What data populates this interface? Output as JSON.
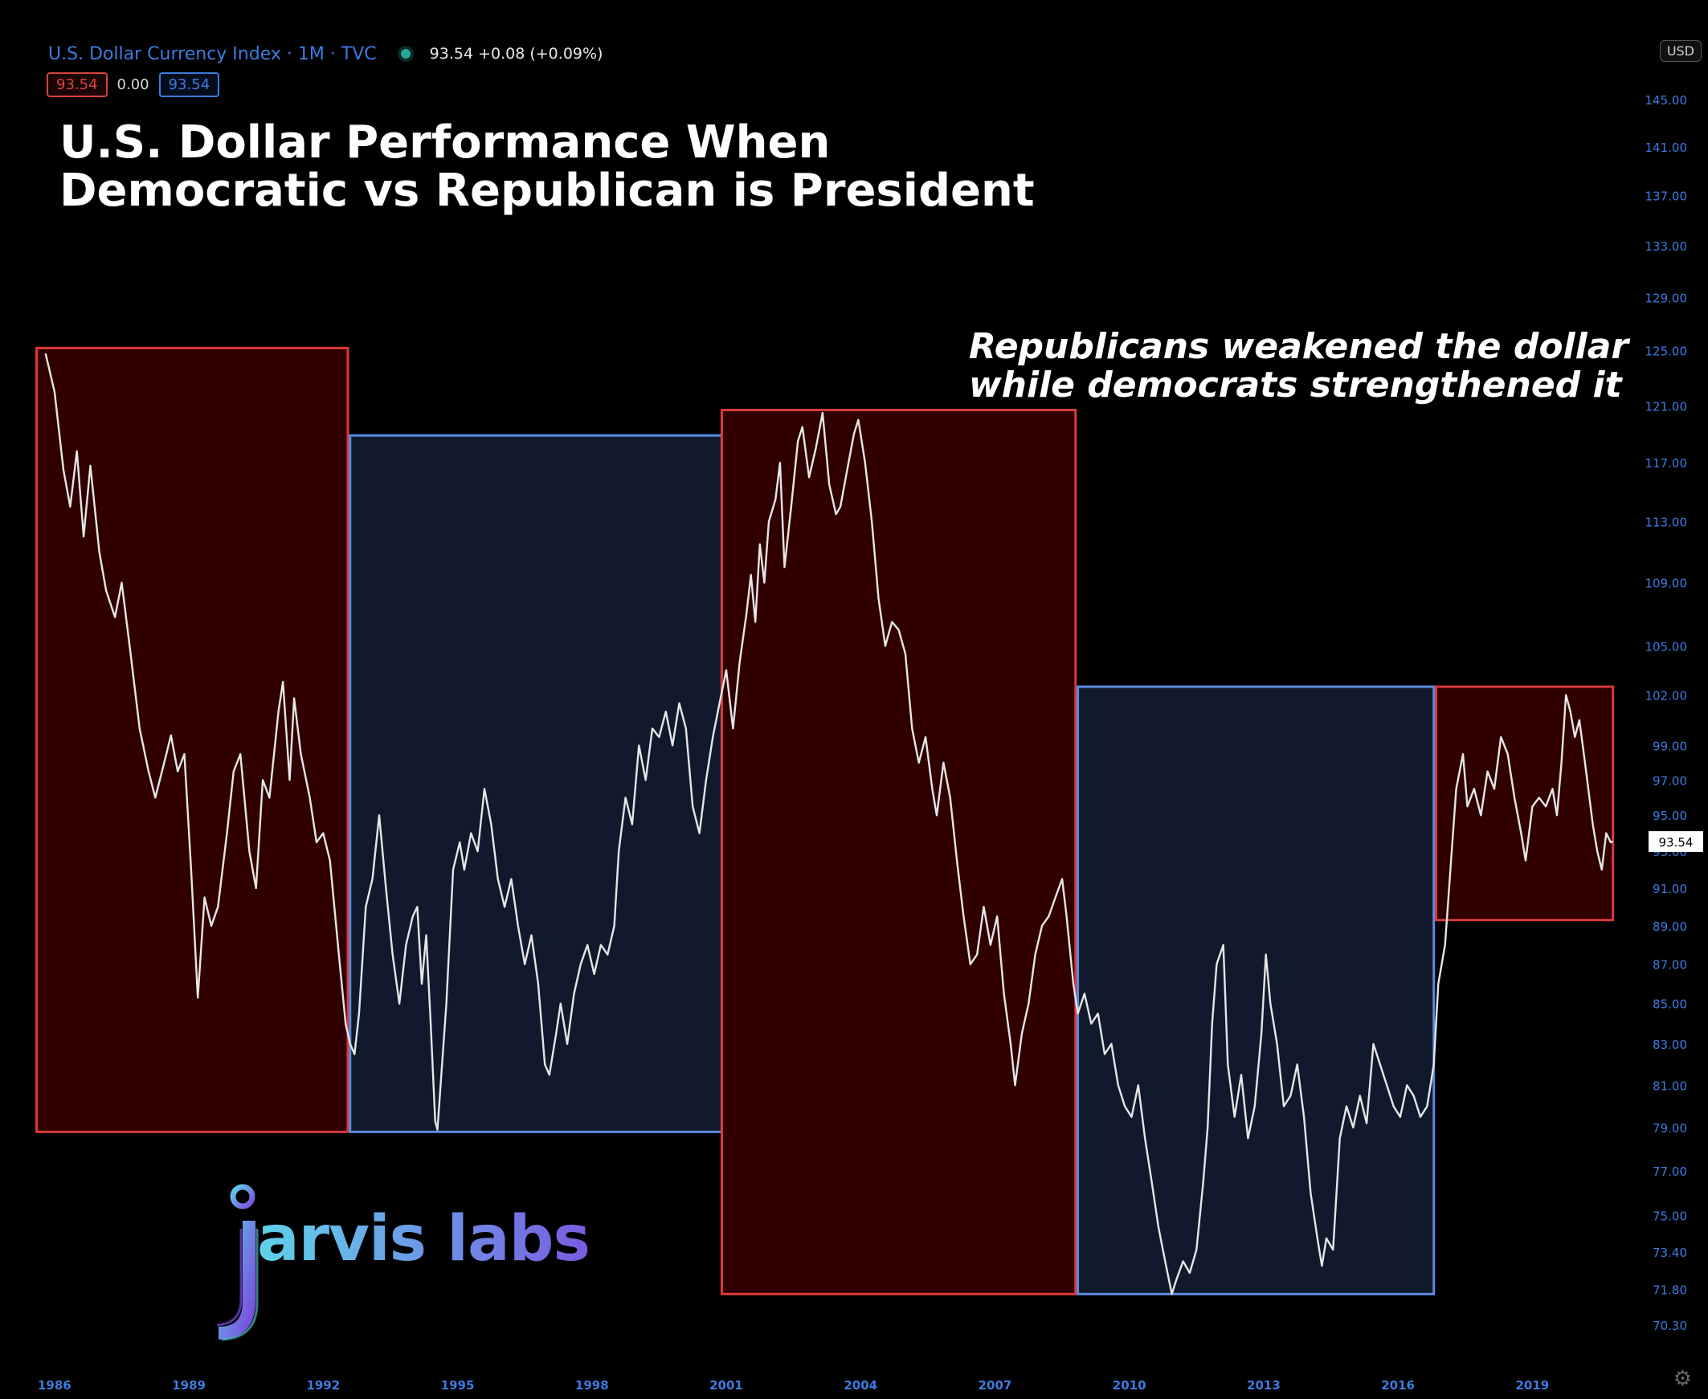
{
  "header": {
    "symbol": "U.S. Dollar Currency Index · 1M · TVC",
    "quote": "93.54  +0.08 (+0.09%)",
    "bid": "93.54",
    "spread": "0.00",
    "ask": "93.54",
    "currency": "USD"
  },
  "title_line1": "U.S. Dollar Performance When",
  "title_line2": "Democratic vs Republican is President",
  "annotation_line1": "Republicans weakened the dollar",
  "annotation_line2": "while democrats strengthened it",
  "logo": {
    "letter": "j",
    "text": "arvis labs"
  },
  "colors": {
    "republican_fill": "#300000",
    "republican_border": "#d93a3a",
    "democrat_fill": "#111a2c",
    "democrat_border": "#5b8be0",
    "line": "#e6e6e6",
    "axis_text": "#3d7be0"
  },
  "chart_data": {
    "type": "line",
    "title": "U.S. Dollar Performance When Democratic vs Republican is President",
    "series_name": "U.S. Dollar Currency Index",
    "last_value": "93.54",
    "y_scale": "log",
    "ylim": [
      69.8,
      147
    ],
    "y_ticks": [
      "145.00",
      "141.00",
      "137.00",
      "133.00",
      "129.00",
      "125.00",
      "121.00",
      "117.00",
      "113.00",
      "109.00",
      "105.00",
      "102.00",
      "99.00",
      "97.00",
      "95.00",
      "93.00",
      "91.00",
      "89.00",
      "87.00",
      "85.00",
      "83.00",
      "81.00",
      "79.00",
      "77.00",
      "75.00",
      "73.40",
      "71.80",
      "70.30"
    ],
    "xlim": [
      1985.5,
      2021.2
    ],
    "x_ticks": [
      "1986",
      "1989",
      "1992",
      "1995",
      "1998",
      "2001",
      "2004",
      "2007",
      "2010",
      "2013",
      "2016",
      "2019"
    ],
    "regions": [
      {
        "party": "Republican",
        "x0": 1985.6,
        "x1": 1992.55,
        "y_low": 78.8,
        "y_high": 125.2
      },
      {
        "party": "Democrat",
        "x0": 1992.6,
        "x1": 2000.9,
        "y_low": 78.8,
        "y_high": 118.9
      },
      {
        "party": "Republican",
        "x0": 2000.9,
        "x1": 2008.8,
        "y_low": 71.6,
        "y_high": 120.7
      },
      {
        "party": "Democrat",
        "x0": 2008.85,
        "x1": 2016.8,
        "y_low": 71.6,
        "y_high": 102.5
      },
      {
        "party": "Republican",
        "x0": 2016.85,
        "x1": 2020.8,
        "y_low": 89.3,
        "y_high": 102.5
      }
    ],
    "points": [
      [
        1985.8,
        124.8
      ],
      [
        1986.0,
        122.0
      ],
      [
        1986.2,
        116.5
      ],
      [
        1986.35,
        114.0
      ],
      [
        1986.5,
        117.8
      ],
      [
        1986.65,
        112.0
      ],
      [
        1986.8,
        116.8
      ],
      [
        1987.0,
        111.0
      ],
      [
        1987.15,
        108.5
      ],
      [
        1987.35,
        106.8
      ],
      [
        1987.5,
        109.0
      ],
      [
        1987.7,
        104.5
      ],
      [
        1987.9,
        100.0
      ],
      [
        1988.1,
        97.5
      ],
      [
        1988.25,
        96.0
      ],
      [
        1988.45,
        98.0
      ],
      [
        1988.6,
        99.6
      ],
      [
        1988.75,
        97.5
      ],
      [
        1988.9,
        98.5
      ],
      [
        1989.05,
        92.0
      ],
      [
        1989.2,
        85.3
      ],
      [
        1989.35,
        90.5
      ],
      [
        1989.5,
        89.0
      ],
      [
        1989.65,
        90.0
      ],
      [
        1989.85,
        94.0
      ],
      [
        1990.0,
        97.5
      ],
      [
        1990.15,
        98.5
      ],
      [
        1990.35,
        93.0
      ],
      [
        1990.5,
        91.0
      ],
      [
        1990.65,
        97.0
      ],
      [
        1990.8,
        96.0
      ],
      [
        1991.0,
        101.0
      ],
      [
        1991.1,
        102.8
      ],
      [
        1991.25,
        97.0
      ],
      [
        1991.35,
        101.8
      ],
      [
        1991.5,
        98.5
      ],
      [
        1991.7,
        96.0
      ],
      [
        1991.85,
        93.5
      ],
      [
        1992.0,
        94.0
      ],
      [
        1992.15,
        92.5
      ],
      [
        1992.35,
        87.5
      ],
      [
        1992.5,
        84.0
      ],
      [
        1992.6,
        83.0
      ],
      [
        1992.7,
        82.5
      ],
      [
        1992.8,
        84.5
      ],
      [
        1992.95,
        90.0
      ],
      [
        1993.1,
        91.5
      ],
      [
        1993.25,
        95.0
      ],
      [
        1993.4,
        91.0
      ],
      [
        1993.55,
        87.5
      ],
      [
        1993.7,
        85.0
      ],
      [
        1993.85,
        88.0
      ],
      [
        1994.0,
        89.5
      ],
      [
        1994.1,
        90.0
      ],
      [
        1994.2,
        86.0
      ],
      [
        1994.3,
        88.5
      ],
      [
        1994.4,
        84.0
      ],
      [
        1994.5,
        79.3
      ],
      [
        1994.55,
        78.9
      ],
      [
        1994.75,
        85.0
      ],
      [
        1994.9,
        92.0
      ],
      [
        1995.05,
        93.5
      ],
      [
        1995.15,
        92.0
      ],
      [
        1995.3,
        94.0
      ],
      [
        1995.45,
        93.0
      ],
      [
        1995.6,
        96.5
      ],
      [
        1995.75,
        94.5
      ],
      [
        1995.9,
        91.5
      ],
      [
        1996.05,
        90.0
      ],
      [
        1996.2,
        91.5
      ],
      [
        1996.35,
        89.0
      ],
      [
        1996.5,
        87.0
      ],
      [
        1996.65,
        88.5
      ],
      [
        1996.8,
        86.0
      ],
      [
        1996.95,
        82.0
      ],
      [
        1997.05,
        81.5
      ],
      [
        1997.2,
        83.5
      ],
      [
        1997.3,
        85.0
      ],
      [
        1997.45,
        83.0
      ],
      [
        1997.6,
        85.5
      ],
      [
        1997.75,
        87.0
      ],
      [
        1997.9,
        88.0
      ],
      [
        1998.05,
        86.5
      ],
      [
        1998.2,
        88.0
      ],
      [
        1998.35,
        87.5
      ],
      [
        1998.5,
        89.0
      ],
      [
        1998.6,
        93.0
      ],
      [
        1998.75,
        96.0
      ],
      [
        1998.9,
        94.5
      ],
      [
        1999.05,
        99.0
      ],
      [
        1999.2,
        97.0
      ],
      [
        1999.35,
        100.0
      ],
      [
        1999.5,
        99.5
      ],
      [
        1999.65,
        101.0
      ],
      [
        1999.8,
        99.0
      ],
      [
        1999.95,
        101.5
      ],
      [
        2000.1,
        100.0
      ],
      [
        2000.25,
        95.5
      ],
      [
        2000.4,
        94.0
      ],
      [
        2000.55,
        97.0
      ],
      [
        2000.7,
        99.5
      ],
      [
        2000.85,
        101.5
      ],
      [
        2001.0,
        103.5
      ],
      [
        2001.15,
        100.0
      ],
      [
        2001.3,
        104.0
      ],
      [
        2001.45,
        107.0
      ],
      [
        2001.55,
        109.5
      ],
      [
        2001.65,
        106.5
      ],
      [
        2001.75,
        111.5
      ],
      [
        2001.85,
        109.0
      ],
      [
        2001.95,
        113.0
      ],
      [
        2002.1,
        114.5
      ],
      [
        2002.2,
        117.0
      ],
      [
        2002.3,
        110.0
      ],
      [
        2002.45,
        114.0
      ],
      [
        2002.6,
        118.5
      ],
      [
        2002.7,
        119.5
      ],
      [
        2002.85,
        116.0
      ],
      [
        2003.0,
        118.0
      ],
      [
        2003.15,
        120.5
      ],
      [
        2003.3,
        115.5
      ],
      [
        2003.45,
        113.5
      ],
      [
        2003.55,
        114.0
      ],
      [
        2003.7,
        116.5
      ],
      [
        2003.85,
        119.0
      ],
      [
        2003.95,
        120.0
      ],
      [
        2004.1,
        117.0
      ],
      [
        2004.25,
        113.0
      ],
      [
        2004.4,
        108.0
      ],
      [
        2004.55,
        105.0
      ],
      [
        2004.7,
        106.5
      ],
      [
        2004.85,
        106.0
      ],
      [
        2005.0,
        104.5
      ],
      [
        2005.15,
        100.0
      ],
      [
        2005.3,
        98.0
      ],
      [
        2005.45,
        99.5
      ],
      [
        2005.6,
        96.5
      ],
      [
        2005.7,
        95.0
      ],
      [
        2005.85,
        98.0
      ],
      [
        2006.0,
        96.0
      ],
      [
        2006.15,
        92.5
      ],
      [
        2006.3,
        89.5
      ],
      [
        2006.45,
        87.0
      ],
      [
        2006.6,
        87.5
      ],
      [
        2006.75,
        90.0
      ],
      [
        2006.9,
        88.0
      ],
      [
        2007.05,
        89.5
      ],
      [
        2007.2,
        85.5
      ],
      [
        2007.35,
        83.0
      ],
      [
        2007.45,
        81.0
      ],
      [
        2007.6,
        83.5
      ],
      [
        2007.75,
        85.0
      ],
      [
        2007.9,
        87.5
      ],
      [
        2008.05,
        89.0
      ],
      [
        2008.2,
        89.5
      ],
      [
        2008.35,
        90.5
      ],
      [
        2008.5,
        91.5
      ],
      [
        2008.6,
        89.5
      ],
      [
        2008.75,
        86.0
      ],
      [
        2008.85,
        84.5
      ],
      [
        2009.0,
        85.5
      ],
      [
        2009.15,
        84.0
      ],
      [
        2009.3,
        84.5
      ],
      [
        2009.45,
        82.5
      ],
      [
        2009.6,
        83.0
      ],
      [
        2009.75,
        81.0
      ],
      [
        2009.9,
        80.0
      ],
      [
        2010.05,
        79.5
      ],
      [
        2010.2,
        81.0
      ],
      [
        2010.35,
        78.5
      ],
      [
        2010.5,
        76.5
      ],
      [
        2010.65,
        74.5
      ],
      [
        2010.8,
        73.0
      ],
      [
        2010.95,
        71.6
      ],
      [
        2011.05,
        72.2
      ],
      [
        2011.2,
        73.0
      ],
      [
        2011.35,
        72.5
      ],
      [
        2011.5,
        73.5
      ],
      [
        2011.65,
        76.5
      ],
      [
        2011.75,
        79.0
      ],
      [
        2011.85,
        84.0
      ],
      [
        2011.95,
        87.0
      ],
      [
        2012.1,
        88.0
      ],
      [
        2012.2,
        82.0
      ],
      [
        2012.35,
        79.5
      ],
      [
        2012.5,
        81.5
      ],
      [
        2012.65,
        78.5
      ],
      [
        2012.8,
        80.0
      ],
      [
        2012.95,
        83.5
      ],
      [
        2013.05,
        87.5
      ],
      [
        2013.15,
        85.0
      ],
      [
        2013.3,
        83.0
      ],
      [
        2013.45,
        80.0
      ],
      [
        2013.6,
        80.5
      ],
      [
        2013.75,
        82.0
      ],
      [
        2013.9,
        79.5
      ],
      [
        2014.05,
        76.0
      ],
      [
        2014.2,
        74.0
      ],
      [
        2014.3,
        72.8
      ],
      [
        2014.4,
        74.0
      ],
      [
        2014.55,
        73.5
      ],
      [
        2014.7,
        78.5
      ],
      [
        2014.85,
        80.0
      ],
      [
        2015.0,
        79.0
      ],
      [
        2015.15,
        80.5
      ],
      [
        2015.3,
        79.2
      ],
      [
        2015.45,
        83.0
      ],
      [
        2015.6,
        82.0
      ],
      [
        2015.75,
        81.0
      ],
      [
        2015.9,
        80.0
      ],
      [
        2016.05,
        79.5
      ],
      [
        2016.2,
        81.0
      ],
      [
        2016.35,
        80.5
      ],
      [
        2016.5,
        79.5
      ],
      [
        2016.65,
        80.0
      ],
      [
        2016.8,
        82.0
      ],
      [
        2016.9,
        86.0
      ],
      [
        2017.05,
        88.0
      ],
      [
        2017.2,
        93.0
      ],
      [
        2017.3,
        96.5
      ],
      [
        2017.45,
        98.5
      ],
      [
        2017.55,
        95.5
      ],
      [
        2017.7,
        96.5
      ],
      [
        2017.85,
        95.0
      ],
      [
        2018.0,
        97.5
      ],
      [
        2018.15,
        96.5
      ],
      [
        2018.3,
        99.5
      ],
      [
        2018.45,
        98.5
      ],
      [
        2018.6,
        96.0
      ],
      [
        2018.75,
        94.0
      ],
      [
        2018.85,
        92.5
      ],
      [
        2019.0,
        95.5
      ],
      [
        2019.15,
        96.0
      ],
      [
        2019.3,
        95.5
      ],
      [
        2019.45,
        96.5
      ],
      [
        2019.55,
        95.0
      ],
      [
        2019.65,
        98.0
      ],
      [
        2019.75,
        102.0
      ],
      [
        2019.85,
        101.0
      ],
      [
        2019.95,
        99.5
      ],
      [
        2020.05,
        100.5
      ],
      [
        2020.15,
        98.5
      ],
      [
        2020.25,
        96.5
      ],
      [
        2020.35,
        94.5
      ],
      [
        2020.45,
        93.0
      ],
      [
        2020.55,
        92.0
      ],
      [
        2020.65,
        94.0
      ],
      [
        2020.75,
        93.5
      ],
      [
        2020.8,
        93.54
      ]
    ]
  }
}
